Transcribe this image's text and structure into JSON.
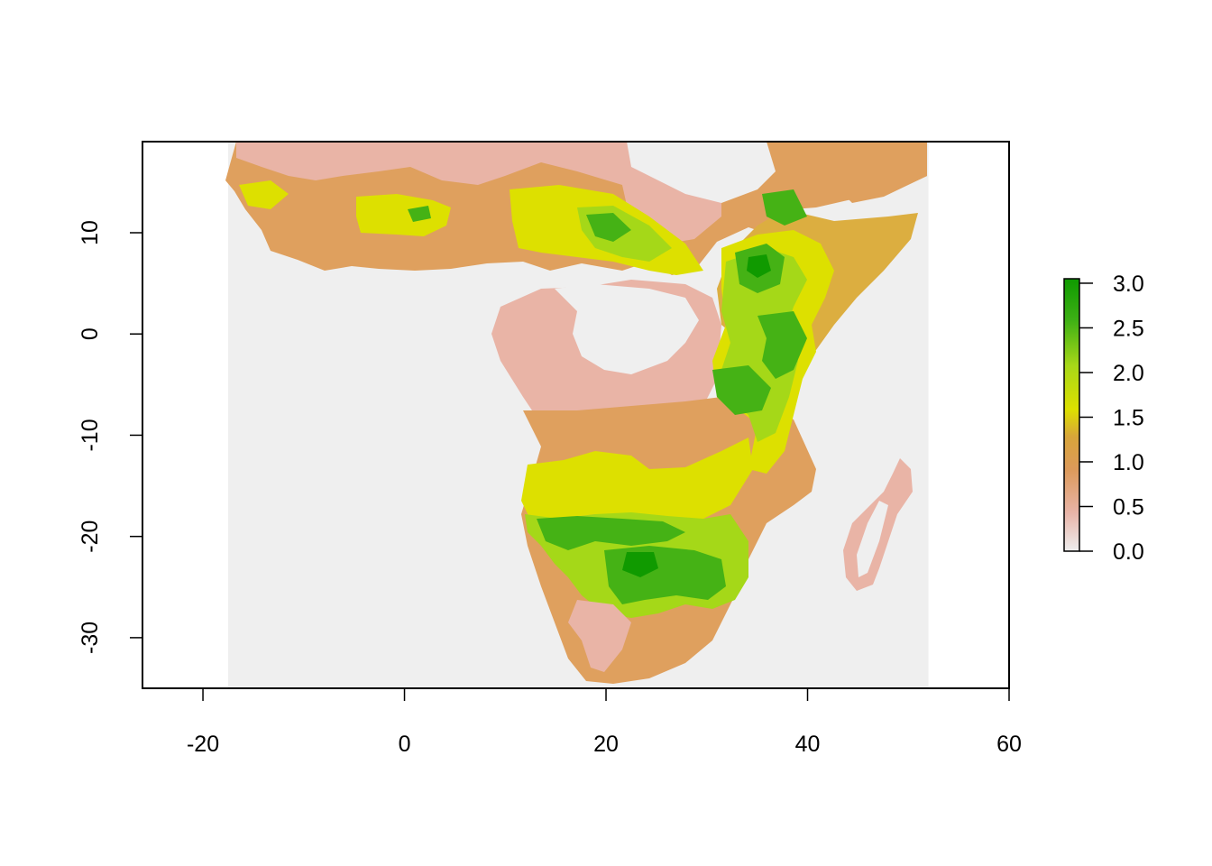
{
  "x_axis": {
    "ticks": [
      -20,
      0,
      20,
      40,
      60
    ],
    "labels": [
      "-20",
      "0",
      "20",
      "40",
      "60"
    ],
    "range": [
      -26,
      60
    ]
  },
  "y_axis": {
    "ticks": [
      10,
      0,
      -10,
      -20,
      -30
    ],
    "labels": [
      "10",
      "0",
      "-10",
      "-20",
      "-30"
    ],
    "range": [
      -35,
      19
    ]
  },
  "raster_extent": {
    "lon": [
      -17.5,
      52
    ],
    "lat": [
      -35,
      19
    ]
  },
  "legend": {
    "min": 0,
    "max": 3.05,
    "ticks": [
      0,
      0.5,
      1,
      1.5,
      2,
      2.5,
      3
    ],
    "labels": [
      "0.0",
      "0.5",
      "1.0",
      "1.5",
      "2.0",
      "2.5",
      "3.0"
    ],
    "gradient_colors": [
      "#eeeeee",
      "#e8b4a8",
      "#dc9a5a",
      "#d8a53a",
      "#dde000",
      "#a8d818",
      "#3db015",
      "#0e9a00"
    ]
  },
  "colors": {
    "background_na": "#efefef",
    "level_0_5": "#e9b4a6",
    "level_1_0": "#dfa05e",
    "level_1_2": "#dcae40",
    "level_1_5": "#dde000",
    "level_2_0": "#a5d818",
    "level_2_5": "#45b215",
    "level_3_0": "#109a00"
  }
}
